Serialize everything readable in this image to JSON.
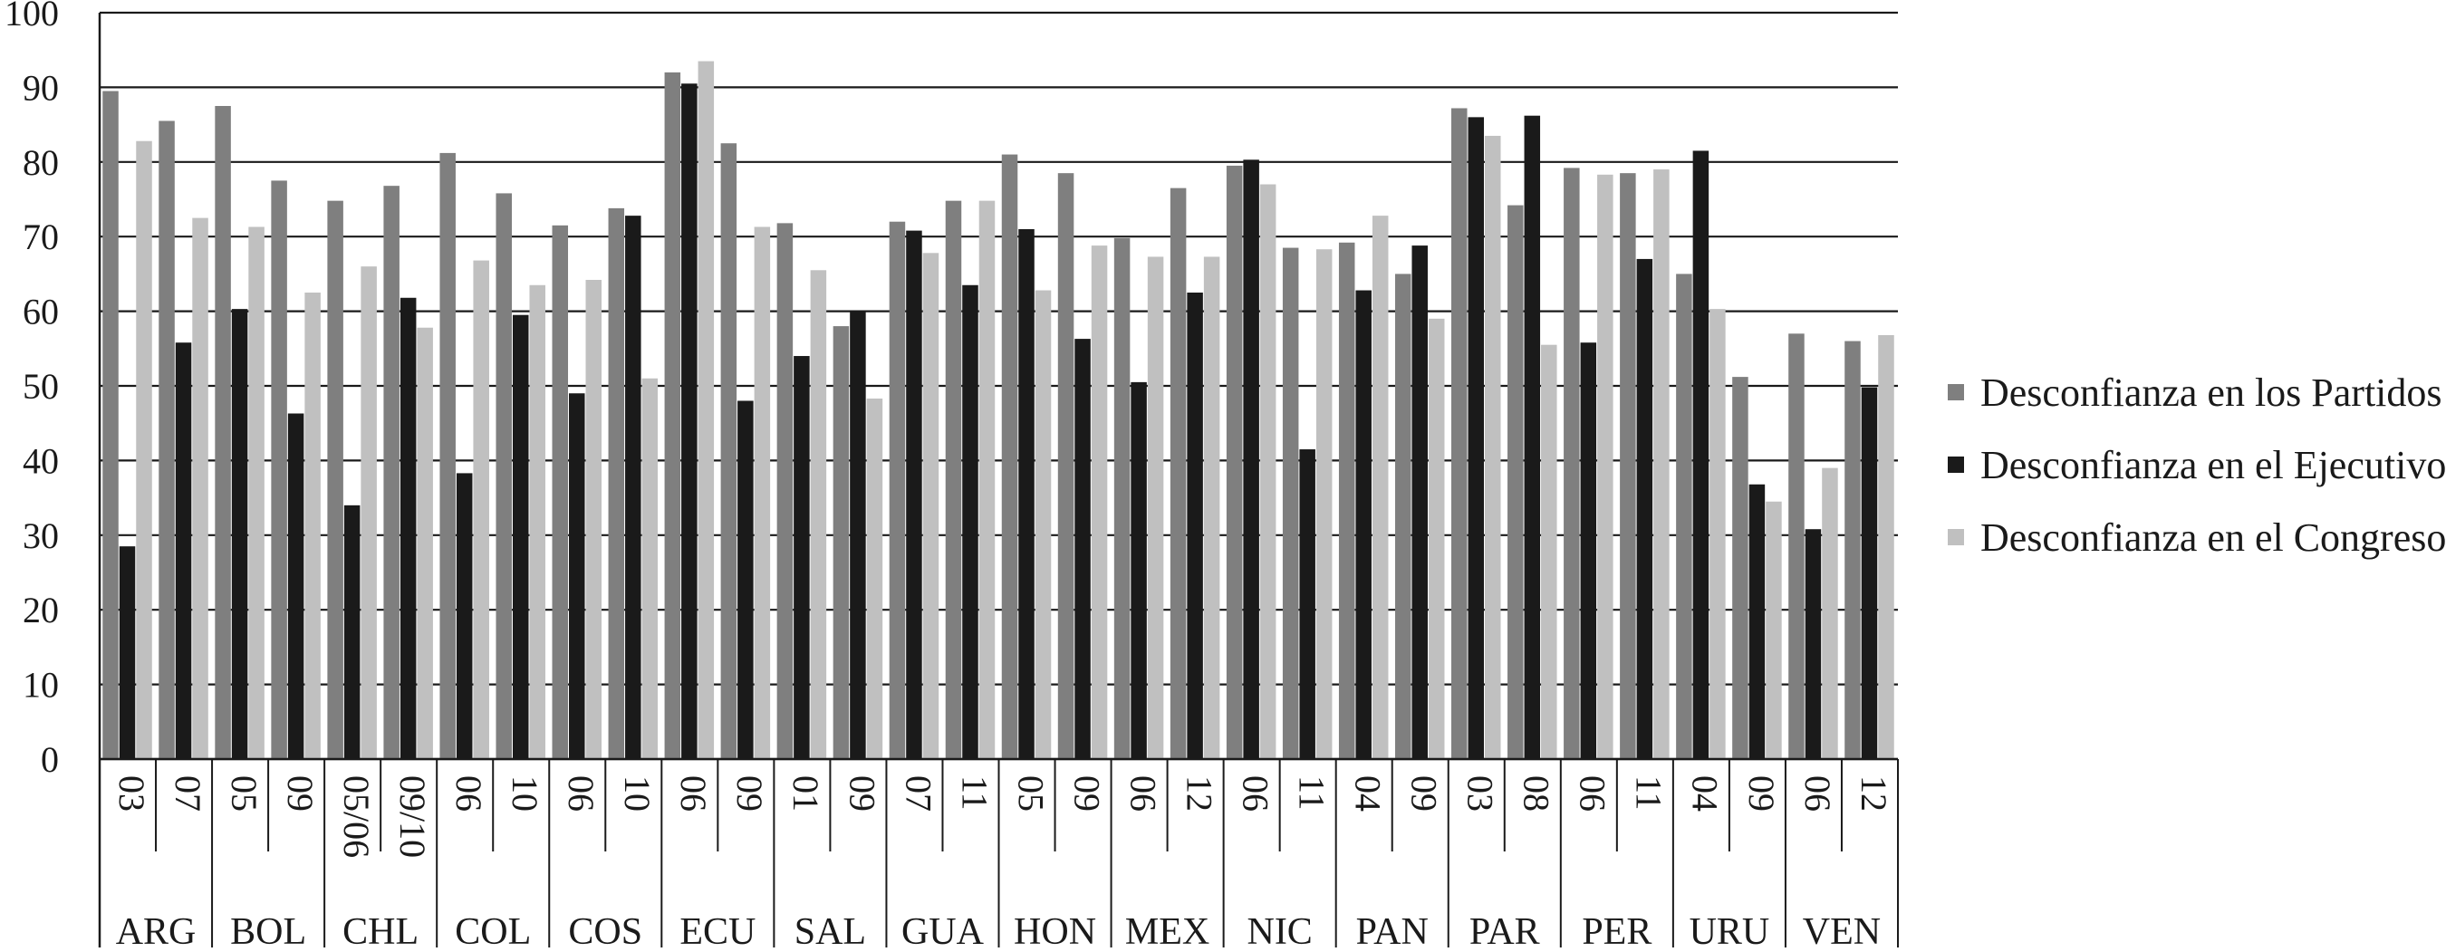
{
  "chart_data": {
    "type": "bar",
    "ylim": [
      0,
      100
    ],
    "yticks": [
      0,
      10,
      20,
      30,
      40,
      50,
      60,
      70,
      80,
      90,
      100
    ],
    "grid": true,
    "legend_position": "right",
    "groups": [
      {
        "country": "ARG",
        "years": [
          "03",
          "07"
        ]
      },
      {
        "country": "BOL",
        "years": [
          "05",
          "09"
        ]
      },
      {
        "country": "CHL",
        "years": [
          "05/06",
          "09/10"
        ]
      },
      {
        "country": "COL",
        "years": [
          "06",
          "10"
        ]
      },
      {
        "country": "COS",
        "years": [
          "06",
          "10"
        ]
      },
      {
        "country": "ECU",
        "years": [
          "06",
          "09"
        ]
      },
      {
        "country": "SAL",
        "years": [
          "01",
          "09"
        ]
      },
      {
        "country": "GUA",
        "years": [
          "07",
          "11"
        ]
      },
      {
        "country": "HON",
        "years": [
          "05",
          "09"
        ]
      },
      {
        "country": "MEX",
        "years": [
          "06",
          "12"
        ]
      },
      {
        "country": "NIC",
        "years": [
          "06",
          "11"
        ]
      },
      {
        "country": "PAN",
        "years": [
          "04",
          "09"
        ]
      },
      {
        "country": "PAR",
        "years": [
          "03",
          "08"
        ]
      },
      {
        "country": "PER",
        "years": [
          "06",
          "11"
        ]
      },
      {
        "country": "URU",
        "years": [
          "04",
          "09"
        ]
      },
      {
        "country": "VEN",
        "years": [
          "06",
          "12"
        ]
      }
    ],
    "series": [
      {
        "name": "Desconfianza en los Partidos",
        "color": "#7f7f7f",
        "values": [
          89.5,
          85.5,
          87.5,
          77.5,
          74.8,
          76.8,
          81.2,
          75.8,
          71.5,
          73.8,
          92,
          82.5,
          71.8,
          58,
          72,
          74.8,
          81,
          78.5,
          69.8,
          76.5,
          79.5,
          68.5,
          69.2,
          65,
          87.2,
          74.2,
          79.2,
          78.5,
          65,
          51.2,
          57,
          56
        ]
      },
      {
        "name": "Desconfianza en el Ejecutivo",
        "color": "#1a1a1a",
        "values": [
          28.5,
          55.8,
          60.3,
          46.3,
          34,
          61.8,
          38.3,
          59.5,
          49,
          72.8,
          90.5,
          48,
          54,
          60,
          70.8,
          63.5,
          71,
          56.3,
          50.5,
          62.5,
          80.3,
          41.5,
          62.8,
          68.8,
          86,
          86.2,
          55.8,
          67,
          81.5,
          36.8,
          30.8,
          49.8
        ]
      },
      {
        "name": "Desconfianza en el Congreso",
        "color": "#c0c0c0",
        "values": [
          82.8,
          72.5,
          71.3,
          62.5,
          66,
          57.8,
          66.8,
          63.5,
          64.2,
          51,
          93.5,
          71.3,
          65.5,
          48.3,
          67.8,
          74.8,
          62.8,
          68.8,
          67.3,
          67.3,
          77,
          68.3,
          72.8,
          59,
          83.5,
          55.5,
          78.3,
          79,
          60.3,
          34.5,
          39,
          56.8
        ]
      }
    ]
  }
}
